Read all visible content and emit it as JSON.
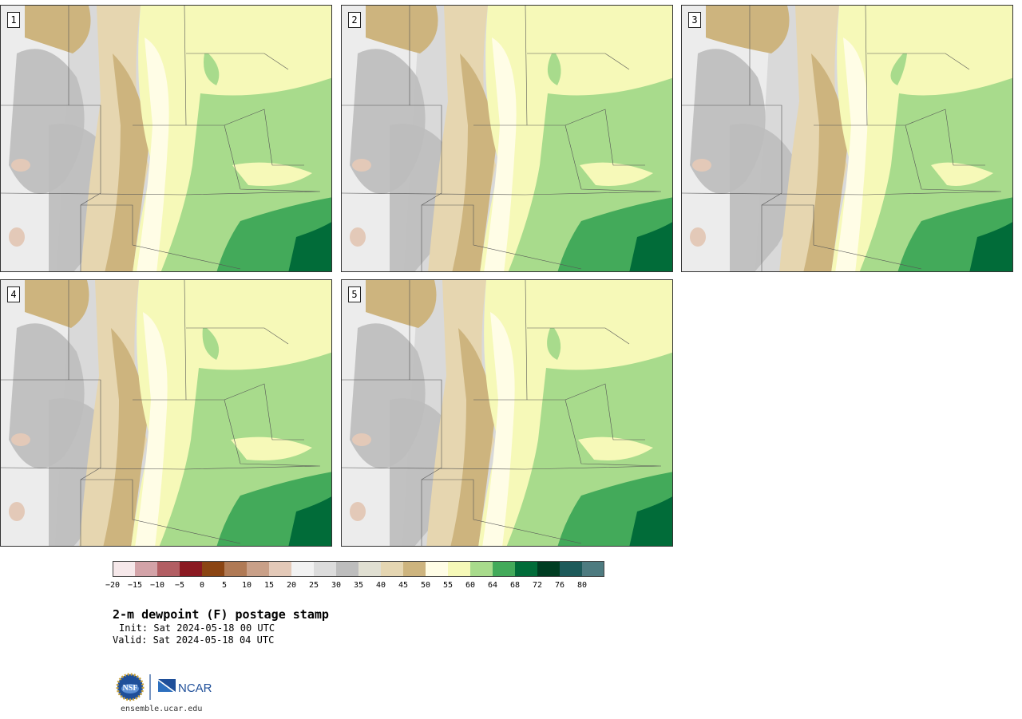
{
  "panels": [
    {
      "label": "1"
    },
    {
      "label": "2"
    },
    {
      "label": "3"
    },
    {
      "label": "4"
    },
    {
      "label": "5"
    }
  ],
  "colorbar": {
    "colors": [
      "#f6e8ea",
      "#d3a3a8",
      "#b25e63",
      "#8b1a22",
      "#8b4513",
      "#b07a55",
      "#c9a088",
      "#e3c9b8",
      "#f2f2f2",
      "#dcdcdc",
      "#bdbdbd",
      "#e0dfd2",
      "#e5d6b2",
      "#cdb47e",
      "#fffde6",
      "#f6f9b8",
      "#a8db8c",
      "#43aa5a",
      "#016c39",
      "#003d22",
      "#1d5a5a",
      "#4e7b80"
    ],
    "tick_labels": [
      "-20",
      "-15",
      "-10",
      "-5",
      "0",
      "5",
      "10",
      "15",
      "20",
      "25",
      "30",
      "35",
      "40",
      "45",
      "50",
      "55",
      "60",
      "64",
      "68",
      "72",
      "76",
      "80"
    ]
  },
  "title": "2-m dewpoint (F) postage stamp",
  "init": "Init: Sat 2024-05-18 00 UTC",
  "valid": "Valid: Sat 2024-05-18 04 UTC",
  "logo": {
    "left": "NSF",
    "right": "NCAR"
  },
  "site": "ensemble.ucar.edu"
}
